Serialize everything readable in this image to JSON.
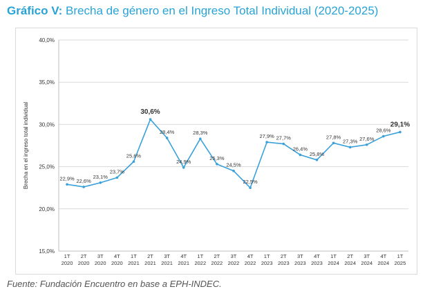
{
  "header": {
    "title_bold": "Gráfico V:",
    "title_rest": "Brecha de género en el Ingreso Total Individual (2020-2025)"
  },
  "footer": {
    "source": "Fuente: Fundación Encuentro en base a EPH-INDEC."
  },
  "chart_data": {
    "type": "line",
    "title": "",
    "xlabel": "",
    "ylabel": "Brecha en el ingreso total individual",
    "ylim": [
      15,
      40
    ],
    "yticks": [
      "15,0%",
      "20,0%",
      "25,0%",
      "30,0%",
      "35,0%",
      "40,0%"
    ],
    "ytick_values": [
      15,
      20,
      25,
      30,
      35,
      40
    ],
    "grid": true,
    "color": "#3aa0da",
    "categories": [
      [
        "1T",
        "2020"
      ],
      [
        "2T",
        "2020"
      ],
      [
        "3T",
        "2020"
      ],
      [
        "4T",
        "2020"
      ],
      [
        "1T",
        "2021"
      ],
      [
        "2T",
        "2021"
      ],
      [
        "3T",
        "2021"
      ],
      [
        "4T",
        "2021"
      ],
      [
        "1T",
        "2022"
      ],
      [
        "2T",
        "2022"
      ],
      [
        "3T",
        "2022"
      ],
      [
        "4T",
        "2022"
      ],
      [
        "1T",
        "2023"
      ],
      [
        "2T",
        "2023"
      ],
      [
        "3T",
        "2023"
      ],
      [
        "4T",
        "2023"
      ],
      [
        "1T",
        "2024"
      ],
      [
        "2T",
        "2024"
      ],
      [
        "3T",
        "2024"
      ],
      [
        "4T",
        "2024"
      ],
      [
        "1T",
        "2025"
      ]
    ],
    "values": [
      22.9,
      22.6,
      23.1,
      23.7,
      25.6,
      30.6,
      28.4,
      24.9,
      28.3,
      25.3,
      24.5,
      22.5,
      27.9,
      27.7,
      26.4,
      25.8,
      27.8,
      27.3,
      27.6,
      28.6,
      29.1
    ],
    "labels": [
      "22,9%",
      "22,6%",
      "23,1%",
      "23,7%",
      "25,6%",
      "30,6%",
      "28,4%",
      "24,9%",
      "28,3%",
      "25,3%",
      "24,5%",
      "22,5%",
      "27,9%",
      "27,7%",
      "26,4%",
      "25,8%",
      "27,8%",
      "27,3%",
      "27,6%",
      "28,6%",
      "29,1%"
    ],
    "bold_labels": [
      5,
      20
    ]
  }
}
